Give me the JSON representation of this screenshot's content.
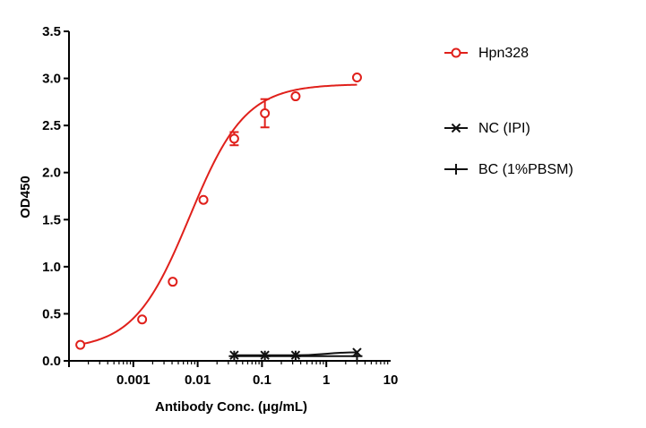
{
  "chart_data": {
    "type": "scatter",
    "xlabel": "Antibody Conc. (μg/mL)",
    "ylabel": "OD450",
    "x_scale": "log",
    "xlim": [
      0.0001,
      10
    ],
    "ylim": [
      0,
      3.5
    ],
    "x_ticks": [
      {
        "value": 0.001,
        "label": "0.001"
      },
      {
        "value": 0.01,
        "label": "0.01"
      },
      {
        "value": 0.1,
        "label": "0.1"
      },
      {
        "value": 1,
        "label": "1"
      },
      {
        "value": 10,
        "label": "10"
      }
    ],
    "y_ticks": [
      {
        "value": 0,
        "label": "0.0"
      },
      {
        "value": 0.5,
        "label": "0.5"
      },
      {
        "value": 1.0,
        "label": "1.0"
      },
      {
        "value": 1.5,
        "label": "1.5"
      },
      {
        "value": 2.0,
        "label": "2.0"
      },
      {
        "value": 2.5,
        "label": "2.5"
      },
      {
        "value": 3.0,
        "label": "3.0"
      },
      {
        "value": 3.5,
        "label": "3.5"
      }
    ],
    "grid": false,
    "legend_position": "right",
    "series": [
      {
        "name": "Hpn328",
        "marker": "circle",
        "color": "#e0201b",
        "fit": "sigmoidal",
        "points": [
          {
            "x": 0.00015,
            "y": 0.17
          },
          {
            "x": 0.00137,
            "y": 0.44
          },
          {
            "x": 0.0041,
            "y": 0.84
          },
          {
            "x": 0.0123,
            "y": 1.71
          },
          {
            "x": 0.037,
            "y": 2.36,
            "err": 0.07
          },
          {
            "x": 0.111,
            "y": 2.63,
            "err": 0.15
          },
          {
            "x": 0.333,
            "y": 2.81
          },
          {
            "x": 3.0,
            "y": 3.01
          }
        ]
      },
      {
        "name": "NC (IPI)",
        "marker": "x",
        "color": "#111111",
        "points": [
          {
            "x": 0.037,
            "y": 0.06
          },
          {
            "x": 0.111,
            "y": 0.06
          },
          {
            "x": 0.333,
            "y": 0.06
          },
          {
            "x": 3.0,
            "y": 0.09
          }
        ]
      },
      {
        "name": "BC (1%PBSM)",
        "marker": "plus",
        "color": "#111111",
        "points": [
          {
            "x": 0.037,
            "y": 0.05
          },
          {
            "x": 0.111,
            "y": 0.05
          },
          {
            "x": 0.333,
            "y": 0.05
          },
          {
            "x": 3.0,
            "y": 0.05
          }
        ]
      }
    ]
  }
}
